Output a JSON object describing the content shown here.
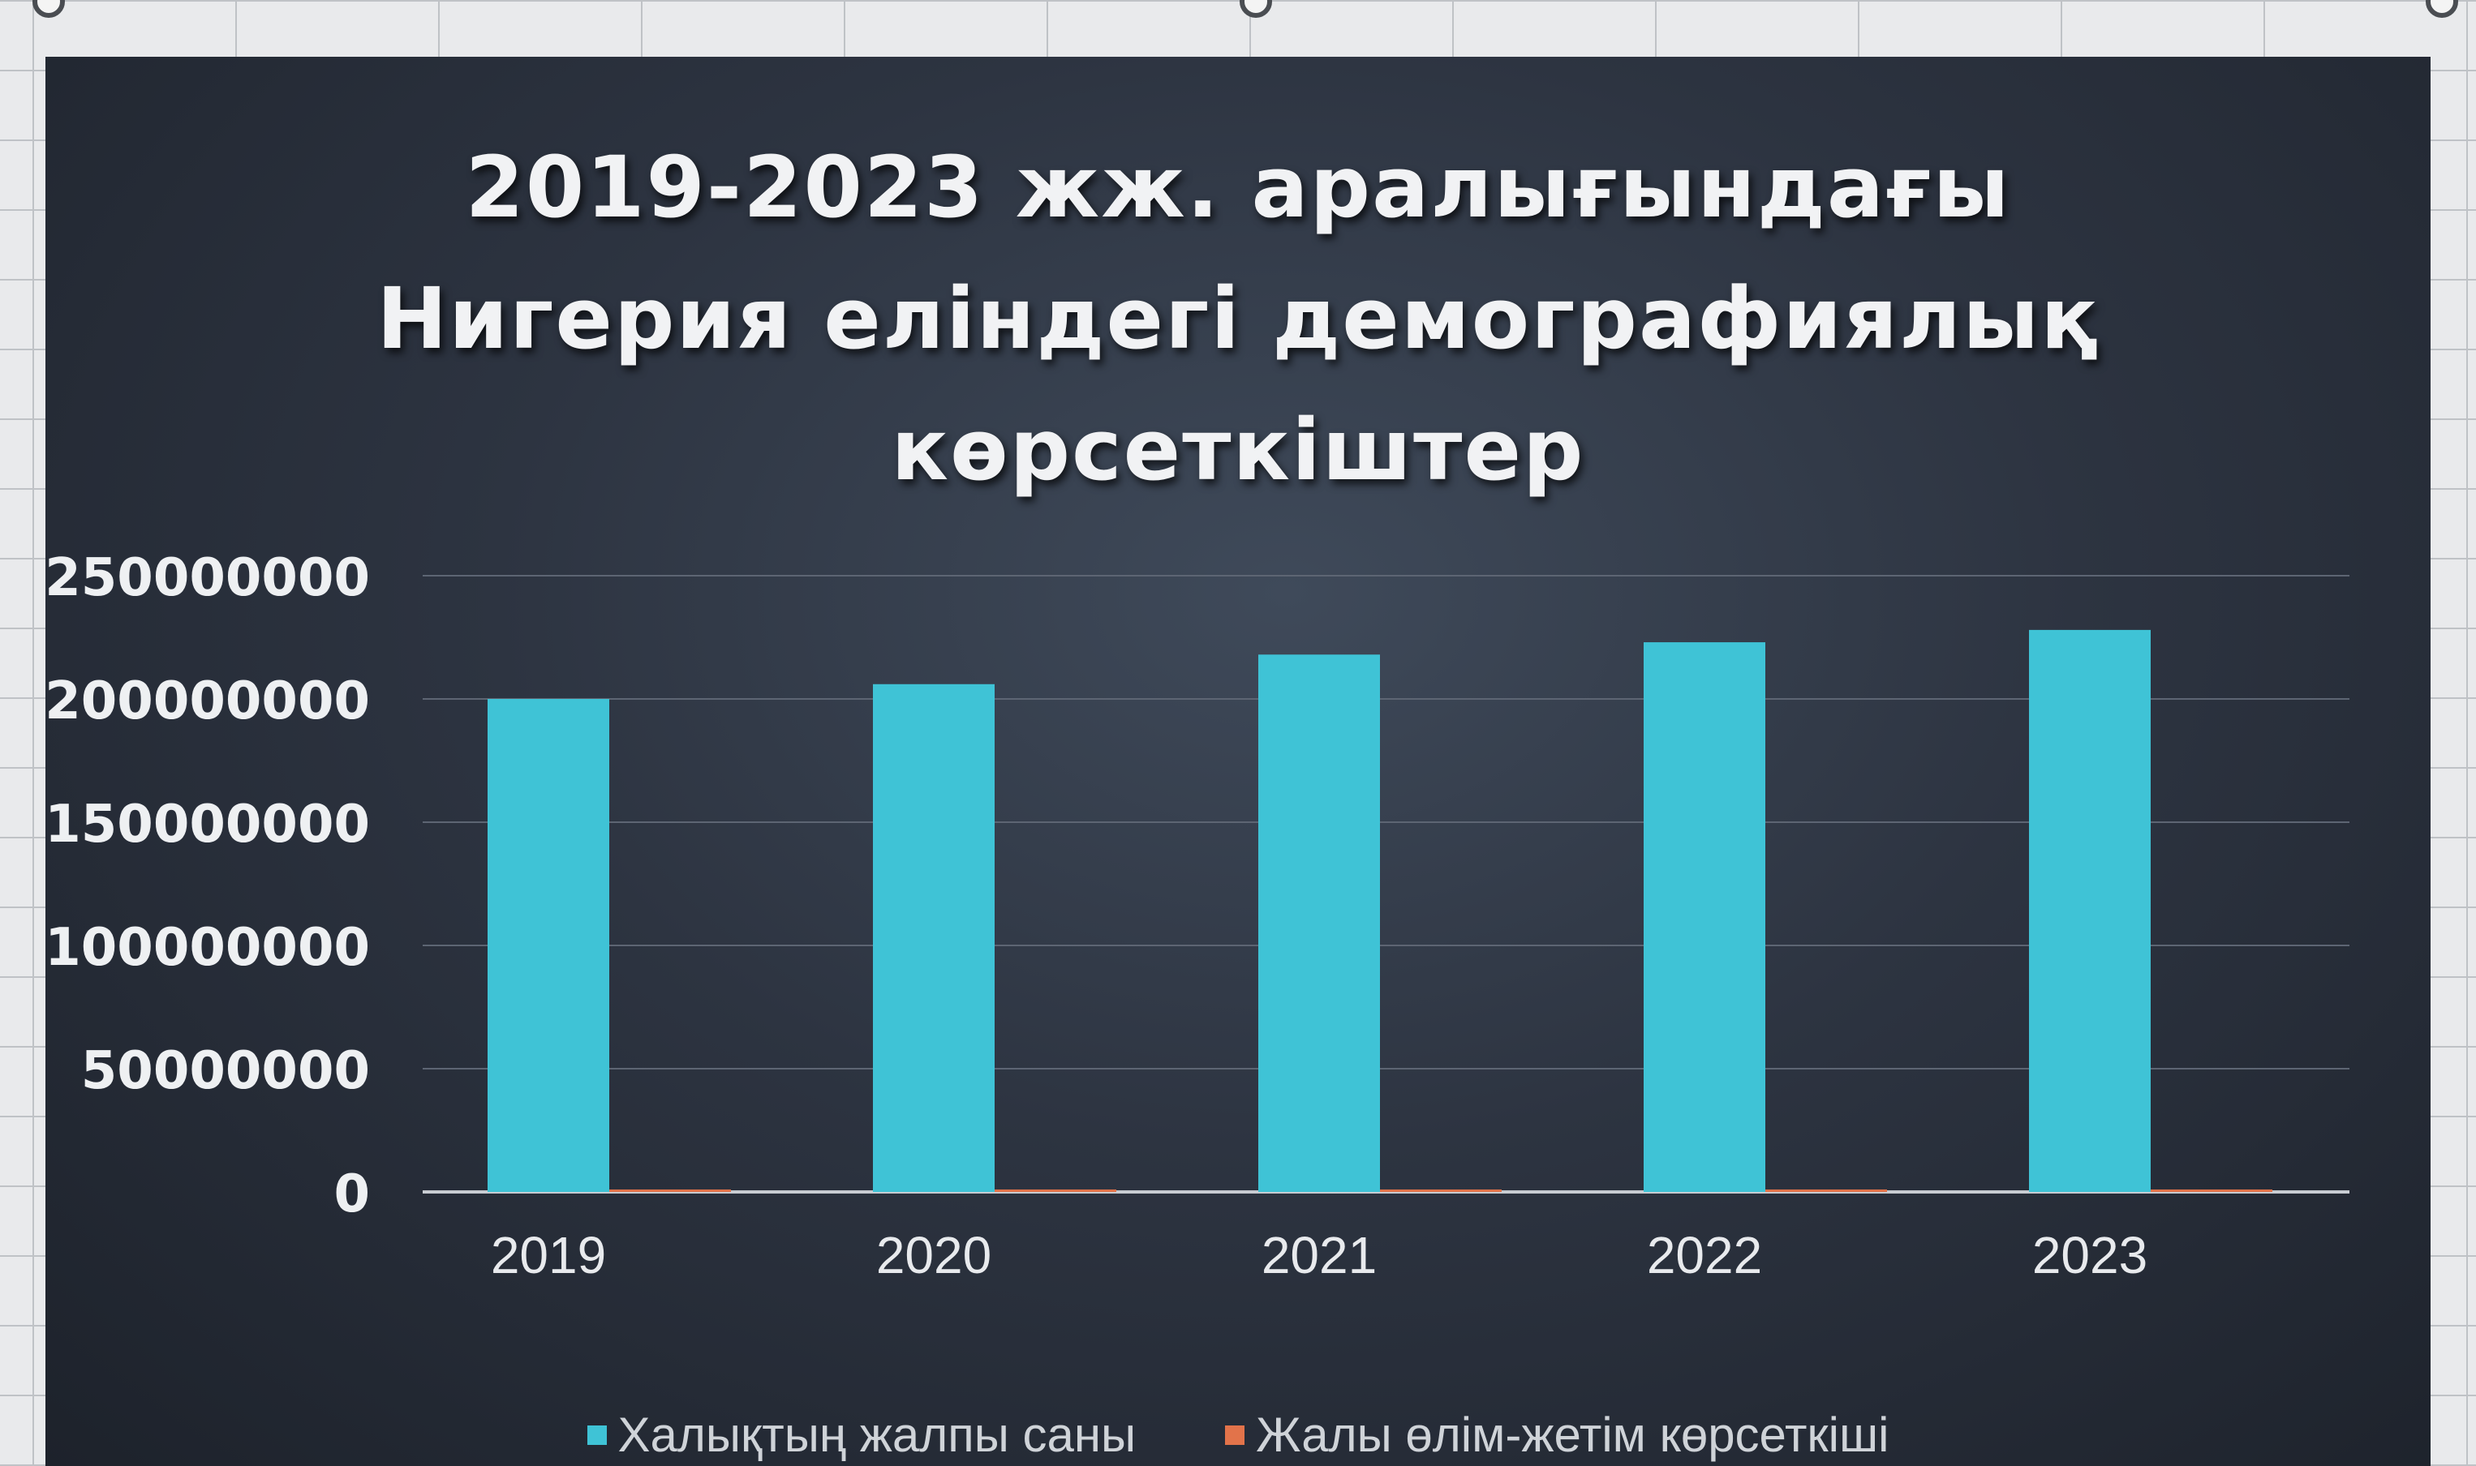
{
  "chart_data": {
    "type": "bar",
    "title_lines": [
      "2019-2023 жж. аралығындағы",
      "Нигерия еліндегі демографиялық",
      "көрсеткіштер"
    ],
    "categories": [
      "2019",
      "2020",
      "2021",
      "2022",
      "2023"
    ],
    "series": [
      {
        "name": "Халықтың жалпы саны",
        "color": "#3fc3d6",
        "values": [
          200000000,
          206000000,
          218000000,
          223000000,
          228000000
        ]
      },
      {
        "name": "Жалы өлім-жетім көрсеткіші",
        "color": "#e2734a",
        "values": [
          1000000,
          1000000,
          1000000,
          1000000,
          1000000
        ]
      }
    ],
    "y_ticks": [
      "250000000",
      "200000000",
      "150000000",
      "100000000",
      "50000000",
      "0"
    ],
    "ylim": [
      0,
      250000000
    ],
    "grid": true,
    "legend_position": "bottom"
  }
}
